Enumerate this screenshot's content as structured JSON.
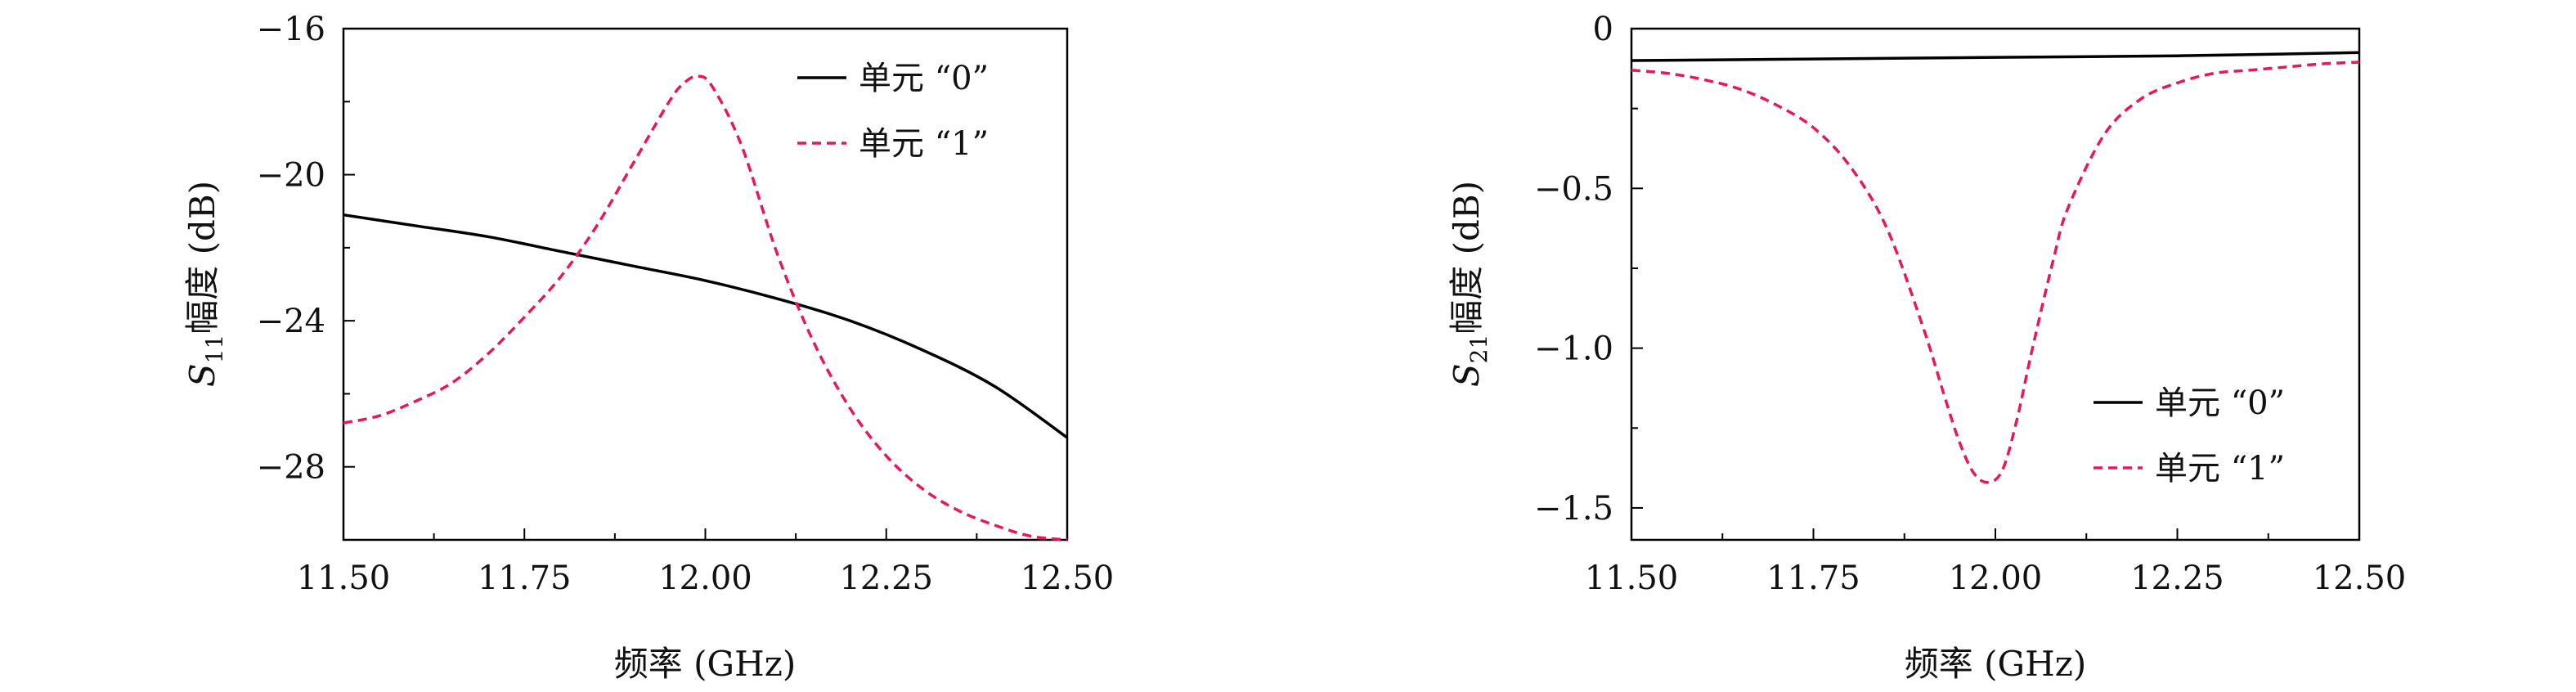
{
  "chart_data": [
    {
      "type": "line",
      "xlabel": "频率 (GHz)",
      "ylabel_symbol": "S",
      "ylabel_subscript": "11",
      "ylabel_rest": "幅度 (dB)",
      "xlim": [
        11.5,
        12.5
      ],
      "ylim": [
        -30,
        -16
      ],
      "xticks": [
        11.5,
        11.75,
        12.0,
        12.25,
        12.5
      ],
      "xtick_labels": [
        "11.50",
        "11.75",
        "12.00",
        "12.25",
        "12.50"
      ],
      "yticks": [
        -16,
        -20,
        -24,
        -28
      ],
      "ytick_labels": [
        "−16",
        "−20",
        "−24",
        "−28"
      ],
      "grid": false,
      "legend_position": "top-right",
      "series": [
        {
          "name": "单元 “0”",
          "style": "solid",
          "color": "#000000",
          "x": [
            11.5,
            11.6,
            11.7,
            11.8,
            11.9,
            12.0,
            12.1,
            12.2,
            12.3,
            12.4,
            12.5
          ],
          "y": [
            -21.1,
            -21.4,
            -21.7,
            -22.1,
            -22.5,
            -22.9,
            -23.4,
            -24.0,
            -24.8,
            -25.8,
            -27.2
          ]
        },
        {
          "name": "单元 “1”",
          "style": "dashed",
          "color": "#e8175d",
          "x": [
            11.5,
            11.55,
            11.6,
            11.65,
            11.7,
            11.75,
            11.8,
            11.85,
            11.9,
            11.95,
            11.97,
            11.99,
            12.01,
            12.05,
            12.1,
            12.15,
            12.2,
            12.25,
            12.3,
            12.35,
            12.4,
            12.45,
            12.5
          ],
          "y": [
            -26.8,
            -26.6,
            -26.2,
            -25.7,
            -24.9,
            -23.9,
            -22.8,
            -21.4,
            -19.7,
            -18.0,
            -17.5,
            -17.3,
            -17.6,
            -19.2,
            -22.2,
            -24.6,
            -26.4,
            -27.7,
            -28.6,
            -29.2,
            -29.6,
            -29.9,
            -30.0
          ]
        }
      ]
    },
    {
      "type": "line",
      "xlabel": "频率 (GHz)",
      "ylabel_symbol": "S",
      "ylabel_subscript": "21",
      "ylabel_rest": "幅度 (dB)",
      "xlim": [
        11.5,
        12.5
      ],
      "ylim": [
        -1.6,
        0.0
      ],
      "xticks": [
        11.5,
        11.75,
        12.0,
        12.25,
        12.5
      ],
      "xtick_labels": [
        "11.50",
        "11.75",
        "12.00",
        "12.25",
        "12.50"
      ],
      "yticks": [
        0.0,
        -0.5,
        -1.0,
        -1.5
      ],
      "ytick_labels": [
        "0",
        "−0.5",
        "−1.0",
        "−1.5"
      ],
      "grid": false,
      "legend_position": "lower-right",
      "series": [
        {
          "name": "单元 “0”",
          "style": "solid",
          "color": "#000000",
          "x": [
            11.5,
            11.75,
            12.0,
            12.25,
            12.5
          ],
          "y": [
            -0.1,
            -0.095,
            -0.09,
            -0.085,
            -0.075
          ]
        },
        {
          "name": "单元 “1”",
          "style": "dashed",
          "color": "#e8175d",
          "x": [
            11.5,
            11.55,
            11.6,
            11.65,
            11.7,
            11.75,
            11.8,
            11.85,
            11.9,
            11.93,
            11.95,
            11.97,
            11.99,
            12.01,
            12.03,
            12.05,
            12.08,
            12.1,
            12.15,
            12.2,
            12.25,
            12.3,
            12.35,
            12.4,
            12.45,
            12.5
          ],
          "y": [
            -0.13,
            -0.14,
            -0.16,
            -0.19,
            -0.24,
            -0.31,
            -0.43,
            -0.62,
            -0.93,
            -1.15,
            -1.29,
            -1.39,
            -1.42,
            -1.38,
            -1.22,
            -1.01,
            -0.72,
            -0.56,
            -0.33,
            -0.22,
            -0.17,
            -0.14,
            -0.13,
            -0.12,
            -0.11,
            -0.105
          ]
        }
      ]
    }
  ]
}
